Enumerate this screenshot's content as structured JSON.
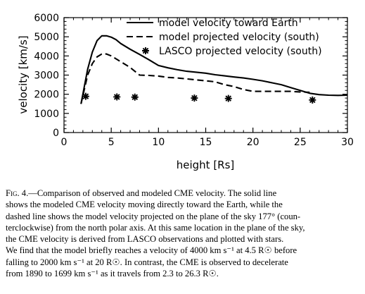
{
  "chart_data": {
    "type": "line",
    "xlabel": "height [Rs]",
    "ylabel": "velocity [km/s]",
    "xlim": [
      0,
      30
    ],
    "ylim": [
      0,
      6000
    ],
    "xticks": [
      "0",
      "5",
      "10",
      "15",
      "20",
      "25",
      "30"
    ],
    "yticks": [
      "0",
      "1000",
      "2000",
      "3000",
      "4000",
      "5000",
      "6000"
    ],
    "grid": false,
    "legend_position": "top-right",
    "series": [
      {
        "name": "model velocity toward Earth",
        "style": "solid",
        "x": [
          1.8,
          2.5,
          3.0,
          3.5,
          4.0,
          4.5,
          5.0,
          5.5,
          6.0,
          7.0,
          8.0,
          9.0,
          10.0,
          11.0,
          12.0,
          13.0,
          14.0,
          15.0,
          16.0,
          17.0,
          18.0,
          19.0,
          20.0,
          21.0,
          22.0,
          23.0,
          24.0,
          25.0,
          26.0,
          27.0,
          28.0,
          29.0,
          30.0
        ],
        "y": [
          1500,
          3300,
          4200,
          4800,
          5050,
          5050,
          4980,
          4850,
          4650,
          4350,
          4080,
          3800,
          3500,
          3380,
          3280,
          3200,
          3150,
          3100,
          3020,
          2960,
          2900,
          2850,
          2780,
          2700,
          2600,
          2500,
          2350,
          2200,
          2050,
          1980,
          1950,
          1940,
          1950
        ]
      },
      {
        "name": "model projected velocity (south)",
        "style": "dashed",
        "x": [
          1.8,
          2.5,
          3.0,
          3.5,
          4.0,
          4.5,
          5.0,
          5.5,
          6.0,
          7.0,
          8.0,
          9.0,
          10.0,
          11.0,
          12.0,
          13.0,
          14.0,
          15.0,
          16.0,
          17.0,
          18.0,
          19.0,
          20.0,
          21.0,
          22.0,
          23.0,
          24.0,
          25.0,
          26.0
        ],
        "y": [
          1500,
          3000,
          3600,
          3950,
          4100,
          4100,
          4000,
          3850,
          3700,
          3400,
          3000,
          2980,
          2950,
          2880,
          2850,
          2800,
          2750,
          2700,
          2650,
          2500,
          2400,
          2250,
          2150,
          2150,
          2150,
          2150,
          2150,
          2120,
          2100
        ]
      },
      {
        "name": "LASCO projected velocity (south)",
        "style": "stars",
        "x": [
          2.3,
          5.6,
          7.5,
          13.8,
          17.4,
          26.3
        ],
        "y": [
          1890,
          1860,
          1850,
          1800,
          1780,
          1699
        ]
      }
    ]
  },
  "caption": {
    "label": "Fig. 4.—",
    "lines": [
      "Comparison of observed and modeled CME velocity. The solid line",
      "shows the modeled CME velocity moving directly toward the Earth, while the",
      "dashed line shows the model velocity projected on the plane of the sky 177° (coun-",
      "terclockwise) from the north polar axis. At this same location in the plane of the sky,",
      "the CME velocity is derived from LASCO observations and plotted with stars.",
      "We find that the model briefly reaches a velocity of 4000 km s⁻¹ at 4.5 R☉ before",
      "falling to 2000 km s⁻¹ at 20 R☉. In contrast, the CME is observed to decelerate",
      "from 1890 to 1699 km s⁻¹ as it travels from 2.3 to 26.3 R☉."
    ]
  }
}
